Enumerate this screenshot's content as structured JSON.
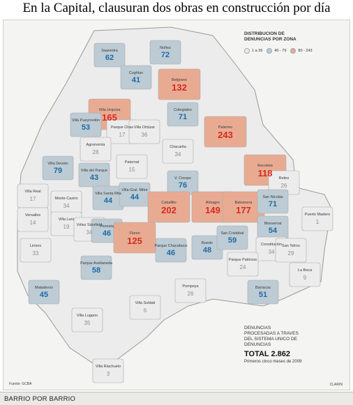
{
  "headline": "En la Capital, clausuran dos obras en construcción por día",
  "legend": {
    "title_line1": "DISTRIBUCION DE",
    "title_line2": "DENUNCIAS POR ZONA",
    "ranges": [
      {
        "label": "1 a 39",
        "color": "#ececec"
      },
      {
        "label": "40 - 79",
        "color": "#bccbd4"
      },
      {
        "label": "80 - 243",
        "color": "#e8ab92"
      }
    ]
  },
  "neighborhoods": [
    {
      "name": "Saavedra",
      "value": "62",
      "level": "mid"
    },
    {
      "name": "Núñez",
      "value": "72",
      "level": "mid"
    },
    {
      "name": "Coghlan",
      "value": "41",
      "level": "mid"
    },
    {
      "name": "Belgrano",
      "value": "132",
      "level": "high"
    },
    {
      "name": "Villa Urquiza",
      "value": "165",
      "level": "high"
    },
    {
      "name": "Villa Pueyrredón",
      "value": "53",
      "level": "mid"
    },
    {
      "name": "Parque Chas",
      "value": "17",
      "level": "low"
    },
    {
      "name": "Villa Ortúzar",
      "value": "36",
      "level": "low"
    },
    {
      "name": "Colegiales",
      "value": "71",
      "level": "mid"
    },
    {
      "name": "Palermo",
      "value": "243",
      "level": "high"
    },
    {
      "name": "Agronomía",
      "value": "28",
      "level": "low"
    },
    {
      "name": "Chacarita",
      "value": "34",
      "level": "low"
    },
    {
      "name": "Villa Devoto",
      "value": "79",
      "level": "mid"
    },
    {
      "name": "Villa del Parque",
      "value": "43",
      "level": "mid"
    },
    {
      "name": "Paternal",
      "value": "15",
      "level": "low"
    },
    {
      "name": "Recoleta",
      "value": "118",
      "level": "high"
    },
    {
      "name": "Retiro",
      "value": "26",
      "level": "low"
    },
    {
      "name": "V. Crespo",
      "value": "76",
      "level": "mid"
    },
    {
      "name": "Villa Real",
      "value": "17",
      "level": "low"
    },
    {
      "name": "Monte Castro",
      "value": "34",
      "level": "low"
    },
    {
      "name": "Villa Santa Rita",
      "value": "44",
      "level": "mid"
    },
    {
      "name": "Villa Gral. Mitre",
      "value": "44",
      "level": "mid"
    },
    {
      "name": "Caballito",
      "value": "202",
      "level": "high"
    },
    {
      "name": "Almagro",
      "value": "149",
      "level": "high"
    },
    {
      "name": "Balvanera",
      "value": "177",
      "level": "high"
    },
    {
      "name": "San Nicolás",
      "value": "71",
      "level": "mid"
    },
    {
      "name": "Versalles",
      "value": "14",
      "level": "low"
    },
    {
      "name": "Villa Luro",
      "value": "19",
      "level": "low"
    },
    {
      "name": "Vélez Sársfield",
      "value": "34",
      "level": "low"
    },
    {
      "name": "Floresta",
      "value": "46",
      "level": "mid"
    },
    {
      "name": "Flores",
      "value": "125",
      "level": "high"
    },
    {
      "name": "Monserrat",
      "value": "54",
      "level": "mid"
    },
    {
      "name": "Puerto Madero",
      "value": "1",
      "level": "low"
    },
    {
      "name": "Liniers",
      "value": "33",
      "level": "low"
    },
    {
      "name": "Parque Chacabuco",
      "value": "46",
      "level": "mid"
    },
    {
      "name": "Boedo",
      "value": "48",
      "level": "mid"
    },
    {
      "name": "San Cristóbal",
      "value": "59",
      "level": "mid"
    },
    {
      "name": "Constitución",
      "value": "34",
      "level": "low"
    },
    {
      "name": "San Telmo",
      "value": "29",
      "level": "low"
    },
    {
      "name": "Parque Avellaneda",
      "value": "58",
      "level": "mid"
    },
    {
      "name": "Parque Patricios",
      "value": "24",
      "level": "low"
    },
    {
      "name": "La Boca",
      "value": "9",
      "level": "low"
    },
    {
      "name": "Mataderos",
      "value": "45",
      "level": "mid"
    },
    {
      "name": "Pompeya",
      "value": "26",
      "level": "low"
    },
    {
      "name": "Barracas",
      "value": "51",
      "level": "mid"
    },
    {
      "name": "Villa Soldati",
      "value": "6",
      "level": "low"
    },
    {
      "name": "Villa Lugano",
      "value": "35",
      "level": "low"
    },
    {
      "name": "Villa Riachuelo",
      "value": "3",
      "level": "low"
    }
  ],
  "summary": {
    "text": "DENUNCIAS\nPROCESADAS A TRAVES\nDEL SISTEMA UNICO DE\nDENUNCIAS",
    "total": "TOTAL 2.862",
    "period": "Primeros cinco meses de 2009"
  },
  "source": "Fuente: GCBA",
  "credit": "CLARIN",
  "footer": "BARRIO POR BARRIO"
}
